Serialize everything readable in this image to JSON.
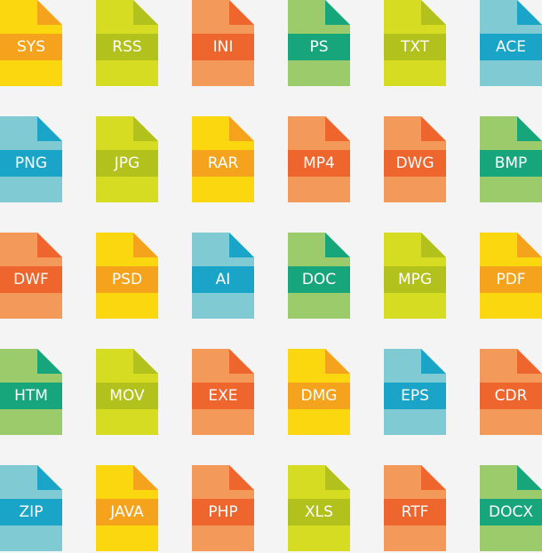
{
  "files": [
    [
      "SYS",
      "RSS",
      "INI",
      "PS",
      "TXT",
      "ACE"
    ],
    [
      "PNG",
      "JPG",
      "RAR",
      "MP4",
      "DWG",
      "BMP"
    ],
    [
      "DWF",
      "PSD",
      "AI",
      "DOC",
      "MPG",
      "PDF"
    ],
    [
      "HTM",
      "MOV",
      "EXE",
      "DMG",
      "EPS",
      "CDR"
    ],
    [
      "ZIP",
      "JAVA",
      "PHP",
      "XLS",
      "RTF",
      "DOCX"
    ]
  ]
}
